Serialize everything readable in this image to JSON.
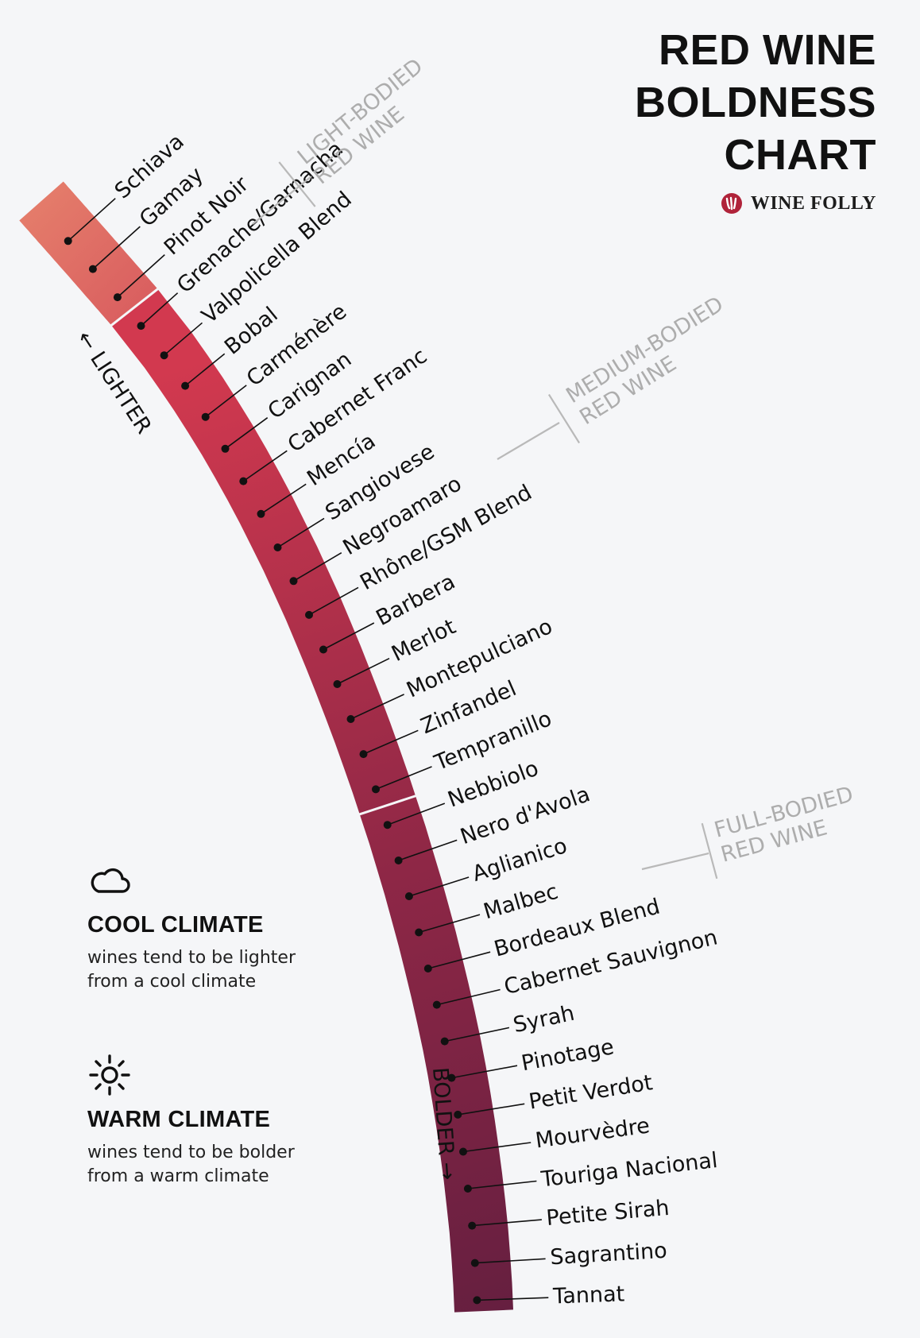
{
  "title": {
    "lines": [
      "RED WINE",
      "BOLDNESS",
      "CHART"
    ]
  },
  "brand": {
    "name": "WINE FOLLY",
    "icon": "wine-folly-logo-icon"
  },
  "direction": {
    "lighter": "← LIGHTER",
    "bolder": "BOLDER →"
  },
  "climate": [
    {
      "icon": "cloud-icon",
      "heading": "COOL CLIMATE",
      "text": "wines tend to be lighter from a cool climate"
    },
    {
      "icon": "sun-icon",
      "heading": "WARM CLIMATE",
      "text": "wines tend to be bolder from a warm climate"
    }
  ],
  "chart_data": {
    "type": "ranked scale",
    "axis": {
      "from": "Lighter",
      "to": "Bolder"
    },
    "groups": [
      {
        "line1": "LIGHT-BODIED",
        "line2": "RED WINE",
        "wines": [
          "Schiava",
          "Gamay",
          "Pinot Noir"
        ]
      },
      {
        "line1": "MEDIUM-BODIED",
        "line2": "RED WINE",
        "wines": [
          "Grenache/Garnacha",
          "Valpolicella Blend",
          "Bobal",
          "Carménère",
          "Carignan",
          "Cabernet Franc",
          "Mencía",
          "Sangiovese",
          "Negroamaro",
          "Rhône/GSM Blend",
          "Barbera",
          "Merlot",
          "Montepulciano",
          "Zinfandel",
          "Tempranillo"
        ]
      },
      {
        "line1": "FULL-BODIED",
        "line2": "RED WINE",
        "wines": [
          "Nebbiolo",
          "Nero d'Avola",
          "Aglianico",
          "Malbec",
          "Bordeaux Blend",
          "Cabernet Sauvignon",
          "Syrah",
          "Pinotage",
          "Petit Verdot",
          "Mourvèdre",
          "Touriga Nacional",
          "Petite Sirah",
          "Sagrantino",
          "Tannat"
        ]
      }
    ],
    "colors": {
      "light": "#e6816c",
      "medium_start": "#d2394f",
      "full_end": "#661f40"
    }
  }
}
